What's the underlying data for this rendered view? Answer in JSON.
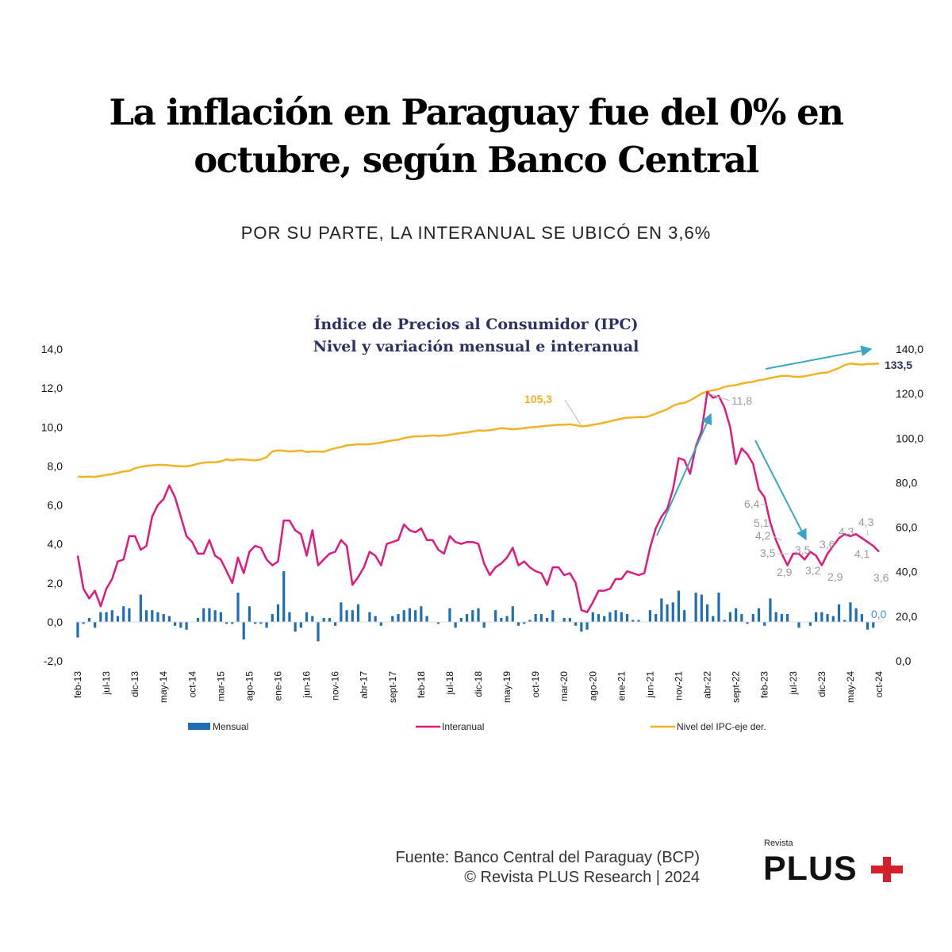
{
  "header": {
    "title_line1": "La inflación en Paraguay fue del 0% en",
    "title_line2": "octubre, según Banco Central",
    "subtitle": "POR SU PARTE, LA INTERANUAL SE UBICÓ EN 3,6%"
  },
  "footer": {
    "source": "Fuente: Banco Central del Paraguay (BCP)",
    "copyright": "© Revista PLUS Research | 2024",
    "logo_small": "Revista",
    "logo_main": "PLUS"
  },
  "chart_data": {
    "type": "bar+line",
    "title": "Índice de Precios al Consumidor (IPC)",
    "subtitle": "Nivel y variación mensual e interanual",
    "x_start": "feb-13",
    "x_end": "oct-24",
    "x_tick_labels": [
      "feb-13",
      "jul-13",
      "dic-13",
      "may-14",
      "oct-14",
      "mar-15",
      "ago-15",
      "ene-16",
      "jun-16",
      "nov-16",
      "abr-17",
      "sept-17",
      "feb-18",
      "jul-18",
      "dic-18",
      "may-19",
      "oct-19",
      "mar-20",
      "ago-20",
      "ene-21",
      "jun-21",
      "nov-21",
      "abr-22",
      "sept-22",
      "feb-23",
      "jul-23",
      "dic-23",
      "may-24",
      "oct-24"
    ],
    "x_tick_every_months": 5,
    "y_left": {
      "min": -2,
      "max": 14,
      "ticks": [
        "-2,0",
        "0,0",
        "2,0",
        "4,0",
        "6,0",
        "8,0",
        "10,0",
        "12,0",
        "14,0"
      ]
    },
    "y_right": {
      "min": 0,
      "max": 140,
      "ticks": [
        "0,0",
        "20,0",
        "40,0",
        "60,0",
        "80,0",
        "100,0",
        "120,0",
        "140,0"
      ]
    },
    "grid": false,
    "legend_position": "bottom",
    "colors": {
      "mensual": "#1f6eb4",
      "interanual": "#e0197d",
      "nivel": "#f0b323",
      "arrow": "#3aa6c4",
      "label_gray": "#9a9a9a",
      "label_navy": "#2b3163",
      "label_blue": "#4a8fd0"
    },
    "series": [
      {
        "name": "Mensual",
        "type": "bar",
        "axis": "left",
        "values": [
          -0.8,
          -0.1,
          0.2,
          -0.3,
          0.5,
          0.5,
          0.6,
          0.3,
          0.8,
          0.7,
          0.0,
          1.4,
          0.6,
          0.6,
          0.5,
          0.4,
          0.3,
          -0.2,
          -0.3,
          -0.4,
          0.0,
          0.2,
          0.7,
          0.7,
          0.6,
          0.5,
          -0.1,
          -0.1,
          1.5,
          -0.9,
          0.8,
          -0.1,
          -0.1,
          -0.3,
          0.4,
          0.9,
          2.6,
          0.5,
          -0.5,
          -0.3,
          0.5,
          0.3,
          -1.0,
          0.2,
          0.2,
          -0.2,
          1.0,
          0.6,
          0.6,
          0.9,
          0.0,
          0.5,
          0.3,
          -0.2,
          0.0,
          0.3,
          0.4,
          0.6,
          0.7,
          0.6,
          0.8,
          0.3,
          0.0,
          -0.1,
          0.0,
          0.7,
          -0.3,
          0.2,
          0.4,
          0.6,
          0.7,
          -0.3,
          0.0,
          0.6,
          0.2,
          0.3,
          0.8,
          -0.2,
          -0.1,
          0.1,
          0.4,
          0.4,
          0.2,
          0.6,
          0.0,
          0.2,
          0.2,
          -0.2,
          -0.5,
          -0.4,
          0.5,
          0.4,
          0.3,
          0.5,
          0.6,
          0.5,
          0.4,
          0.1,
          0.1,
          0.0,
          0.6,
          0.4,
          1.2,
          0.9,
          1.0,
          1.6,
          0.6,
          0.0,
          1.5,
          1.4,
          0.9,
          0.3,
          1.5,
          0.1,
          0.5,
          0.7,
          0.4,
          -0.1,
          0.4,
          0.7,
          -0.2,
          1.2,
          0.5,
          0.4,
          0.4,
          0.0,
          -0.3,
          0.0,
          -0.2,
          0.5,
          0.5,
          0.4,
          0.3,
          0.9,
          0.1,
          1.0,
          0.7,
          0.4,
          -0.4,
          -0.3,
          0.0
        ]
      },
      {
        "name": "Interanual",
        "type": "line",
        "axis": "left",
        "values": [
          3.4,
          1.7,
          1.2,
          1.6,
          0.8,
          1.7,
          2.2,
          3.1,
          3.2,
          4.4,
          4.4,
          3.7,
          3.9,
          5.4,
          6.0,
          6.3,
          7.0,
          6.4,
          5.4,
          4.4,
          4.1,
          3.5,
          3.5,
          4.2,
          3.4,
          3.2,
          2.6,
          2.0,
          3.3,
          2.5,
          3.6,
          3.9,
          3.8,
          3.2,
          2.9,
          3.1,
          5.2,
          5.2,
          4.7,
          4.5,
          3.4,
          4.7,
          2.9,
          3.2,
          3.5,
          3.6,
          4.2,
          3.9,
          1.9,
          2.3,
          2.8,
          3.6,
          3.4,
          2.9,
          4.0,
          4.1,
          4.2,
          5.0,
          4.7,
          4.6,
          4.8,
          4.2,
          4.2,
          3.7,
          3.5,
          4.4,
          4.1,
          4.0,
          4.1,
          4.1,
          4.0,
          3.0,
          2.4,
          2.8,
          3.0,
          3.3,
          3.8,
          2.9,
          3.1,
          2.8,
          2.6,
          2.5,
          1.9,
          2.8,
          2.8,
          2.4,
          2.5,
          2.0,
          0.6,
          0.5,
          1.0,
          1.6,
          1.6,
          1.7,
          2.2,
          2.2,
          2.6,
          2.5,
          2.4,
          2.5,
          3.8,
          4.8,
          5.4,
          5.8,
          6.8,
          8.4,
          8.3,
          7.6,
          9.0,
          9.8,
          11.8,
          11.5,
          11.6,
          11.0,
          10.0,
          8.1,
          8.9,
          8.6,
          8.1,
          6.8,
          6.4,
          5.1,
          4.2,
          3.5,
          2.9,
          3.5,
          3.5,
          3.2,
          3.6,
          3.4,
          2.9,
          3.5,
          3.9,
          4.3,
          4.5,
          4.4,
          4.5,
          4.3,
          4.1,
          3.9,
          3.6
        ]
      },
      {
        "name": "Nivel del IPC-eje der.",
        "type": "line",
        "axis": "right",
        "values": [
          82.7,
          82.6,
          82.7,
          82.6,
          83.0,
          83.5,
          83.8,
          84.4,
          85.0,
          85.3,
          86.5,
          87.1,
          87.5,
          87.8,
          88.0,
          88.0,
          87.8,
          87.5,
          87.3,
          87.3,
          87.8,
          88.5,
          89.0,
          89.2,
          89.1,
          89.6,
          90.5,
          90.0,
          90.5,
          90.4,
          90.2,
          90.0,
          90.4,
          91.5,
          94.0,
          94.5,
          94.3,
          94.0,
          94.2,
          94.5,
          93.8,
          94.0,
          94.0,
          93.9,
          94.8,
          95.5,
          96.0,
          96.8,
          97.0,
          97.3,
          97.2,
          97.3,
          97.6,
          98.0,
          98.5,
          99.0,
          99.3,
          100.0,
          100.5,
          100.8,
          100.8,
          101.0,
          101.2,
          101.0,
          101.2,
          101.5,
          102.0,
          102.3,
          102.6,
          103.0,
          103.5,
          103.3,
          103.6,
          104.0,
          104.5,
          104.3,
          104.0,
          104.2,
          104.5,
          104.8,
          105.0,
          105.3,
          105.5,
          105.8,
          106.0,
          106.0,
          106.2,
          105.8,
          105.3,
          105.5,
          106.0,
          106.4,
          107.0,
          107.5,
          108.2,
          108.8,
          109.2,
          109.3,
          109.5,
          109.4,
          110.0,
          111.0,
          112.0,
          113.0,
          114.5,
          115.5,
          115.8,
          117.0,
          118.5,
          120.0,
          121.0,
          121.5,
          122.0,
          123.0,
          123.5,
          123.8,
          124.5,
          125.0,
          125.3,
          126.0,
          126.4,
          127.0,
          127.5,
          128.0,
          128.0,
          127.6,
          127.5,
          127.8,
          128.3,
          128.8,
          129.3,
          129.5,
          130.5,
          131.5,
          132.8,
          133.5,
          133.2,
          133.0,
          133.3,
          133.3,
          133.5
        ]
      }
    ],
    "annotations": [
      {
        "text": "105,3",
        "series": "Nivel del IPC-eje der.",
        "color": "orange"
      },
      {
        "text": "133,5",
        "series": "Nivel del IPC-eje der.",
        "color": "navy"
      },
      {
        "text": "11,8",
        "series": "Interanual",
        "color": "gray"
      },
      {
        "text": "6,4",
        "series": "Interanual",
        "color": "gray"
      },
      {
        "text": "5,1",
        "series": "Interanual",
        "color": "gray"
      },
      {
        "text": "4,2",
        "series": "Interanual",
        "color": "gray"
      },
      {
        "text": "3,5",
        "series": "Interanual",
        "color": "gray"
      },
      {
        "text": "2,9",
        "series": "Interanual",
        "color": "gray"
      },
      {
        "text": "3,5",
        "series": "Interanual",
        "color": "gray"
      },
      {
        "text": "3,2",
        "series": "Interanual",
        "color": "gray"
      },
      {
        "text": "3,6",
        "series": "Interanual",
        "color": "gray"
      },
      {
        "text": "2,9",
        "series": "Interanual",
        "color": "gray"
      },
      {
        "text": "4,3",
        "series": "Interanual",
        "color": "gray"
      },
      {
        "text": "4,3",
        "series": "Interanual",
        "color": "gray"
      },
      {
        "text": "4,1",
        "series": "Interanual",
        "color": "gray"
      },
      {
        "text": "3,6",
        "series": "Interanual",
        "color": "gray"
      },
      {
        "text": "0,0",
        "series": "Mensual",
        "color": "blue"
      }
    ]
  }
}
